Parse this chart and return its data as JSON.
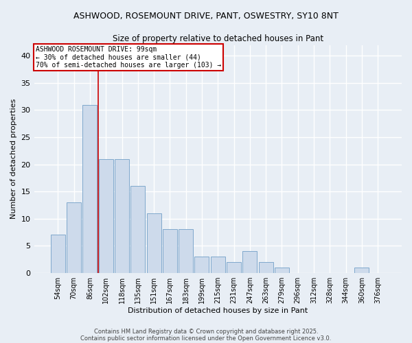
{
  "title1": "ASHWOOD, ROSEMOUNT DRIVE, PANT, OSWESTRY, SY10 8NT",
  "title2": "Size of property relative to detached houses in Pant",
  "xlabel": "Distribution of detached houses by size in Pant",
  "ylabel": "Number of detached properties",
  "categories": [
    "54sqm",
    "70sqm",
    "86sqm",
    "102sqm",
    "118sqm",
    "135sqm",
    "151sqm",
    "167sqm",
    "183sqm",
    "199sqm",
    "215sqm",
    "231sqm",
    "247sqm",
    "263sqm",
    "279sqm",
    "296sqm",
    "312sqm",
    "328sqm",
    "344sqm",
    "360sqm",
    "376sqm"
  ],
  "values": [
    7,
    13,
    31,
    21,
    21,
    16,
    11,
    8,
    8,
    3,
    3,
    2,
    4,
    2,
    1,
    0,
    0,
    0,
    0,
    1,
    0
  ],
  "bar_color": "#cddaeb",
  "bar_edge_color": "#7fa8cc",
  "vline_x": 2.5,
  "vline_color": "#cc0000",
  "annotation_line1": "ASHWOOD ROSEMOUNT DRIVE: 99sqm",
  "annotation_line2": "← 30% of detached houses are smaller (44)",
  "annotation_line3": "70% of semi-detached houses are larger (103) →",
  "annotation_box_facecolor": "#ffffff",
  "annotation_box_edgecolor": "#cc0000",
  "ylim": [
    0,
    42
  ],
  "yticks": [
    0,
    5,
    10,
    15,
    20,
    25,
    30,
    35,
    40
  ],
  "background_color": "#e8eef5",
  "grid_color": "#ffffff",
  "footer1": "Contains HM Land Registry data © Crown copyright and database right 2025.",
  "footer2": "Contains public sector information licensed under the Open Government Licence v3.0."
}
